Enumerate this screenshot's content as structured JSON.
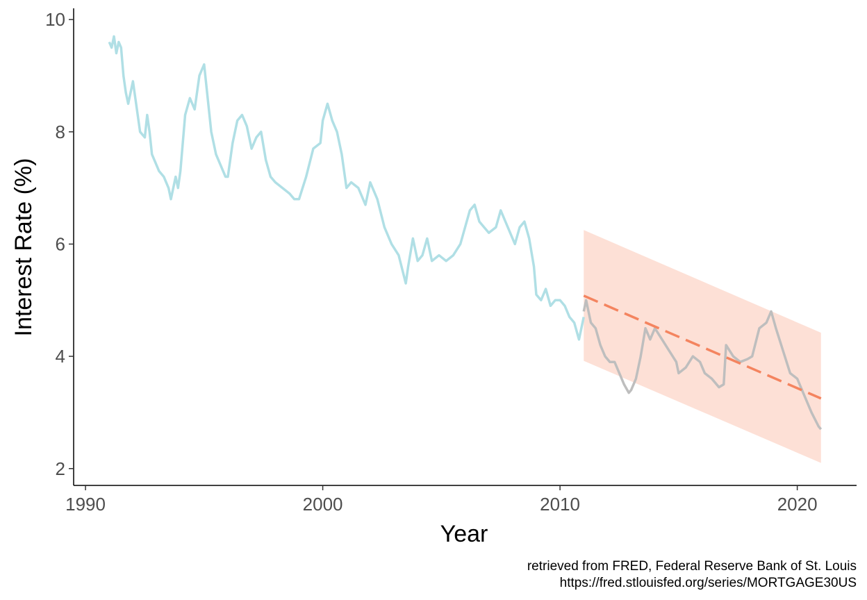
{
  "chart_data": {
    "type": "line",
    "title": "",
    "xlabel": "Year",
    "ylabel": "Interest Rate (%)",
    "xlim": [
      1989.5,
      2022.5
    ],
    "ylim": [
      1.7,
      10.2
    ],
    "x_ticks": [
      1990,
      2000,
      2010,
      2020
    ],
    "y_ticks": [
      2,
      4,
      6,
      8,
      10
    ],
    "grid": false,
    "legend": "none",
    "caption_lines": [
      "retrieved from FRED, Federal Reserve Bank of St. Louis",
      "https://fred.stlouisfed.org/series/MORTGAGE30US"
    ],
    "colors": {
      "training": "#b0dfe5",
      "observed": "#bebebe",
      "trend": "#f4845f",
      "band": "#fde0d6",
      "axis": "#000000"
    },
    "series": [
      {
        "role": "training",
        "x": [
          1991.0,
          1991.1,
          1991.2,
          1991.3,
          1991.4,
          1991.5,
          1991.6,
          1991.7,
          1991.8,
          1992.0,
          1992.1,
          1992.2,
          1992.3,
          1992.5,
          1992.6,
          1992.7,
          1992.8,
          1993.0,
          1993.1,
          1993.3,
          1993.5,
          1993.6,
          1993.8,
          1993.9,
          1994.0,
          1994.2,
          1994.4,
          1994.6,
          1994.8,
          1995.0,
          1995.1,
          1995.3,
          1995.5,
          1995.7,
          1995.9,
          1996.0,
          1996.2,
          1996.4,
          1996.6,
          1996.8,
          1997.0,
          1997.2,
          1997.4,
          1997.6,
          1997.8,
          1998.0,
          1998.3,
          1998.6,
          1998.8,
          1999.0,
          1999.3,
          1999.6,
          1999.9,
          2000.0,
          2000.2,
          2000.4,
          2000.6,
          2000.8,
          2001.0,
          2001.2,
          2001.5,
          2001.8,
          2002.0,
          2002.3,
          2002.6,
          2002.9,
          2003.2,
          2003.5,
          2003.6,
          2003.8,
          2004.0,
          2004.2,
          2004.4,
          2004.6,
          2004.9,
          2005.2,
          2005.5,
          2005.8,
          2006.0,
          2006.2,
          2006.4,
          2006.6,
          2006.8,
          2007.0,
          2007.3,
          2007.5,
          2007.7,
          2007.9,
          2008.1,
          2008.3,
          2008.5,
          2008.7,
          2008.9,
          2009.0,
          2009.2,
          2009.4,
          2009.6,
          2009.8,
          2010.0,
          2010.2,
          2010.4,
          2010.6,
          2010.8,
          2011.0
        ],
        "y": [
          9.6,
          9.5,
          9.7,
          9.4,
          9.6,
          9.5,
          9.0,
          8.7,
          8.5,
          8.9,
          8.6,
          8.3,
          8.0,
          7.9,
          8.3,
          8.0,
          7.6,
          7.4,
          7.3,
          7.2,
          7.0,
          6.8,
          7.2,
          7.0,
          7.3,
          8.3,
          8.6,
          8.4,
          9.0,
          9.2,
          8.8,
          8.0,
          7.6,
          7.4,
          7.2,
          7.2,
          7.8,
          8.2,
          8.3,
          8.1,
          7.7,
          7.9,
          8.0,
          7.5,
          7.2,
          7.1,
          7.0,
          6.9,
          6.8,
          6.8,
          7.2,
          7.7,
          7.8,
          8.2,
          8.5,
          8.2,
          8.0,
          7.6,
          7.0,
          7.1,
          7.0,
          6.7,
          7.1,
          6.8,
          6.3,
          6.0,
          5.8,
          5.3,
          5.6,
          6.1,
          5.7,
          5.8,
          6.1,
          5.7,
          5.8,
          5.7,
          5.8,
          6.0,
          6.3,
          6.6,
          6.7,
          6.4,
          6.3,
          6.2,
          6.3,
          6.6,
          6.4,
          6.2,
          6.0,
          6.3,
          6.4,
          6.1,
          5.6,
          5.1,
          5.0,
          5.2,
          4.9,
          5.0,
          5.0,
          4.9,
          4.7,
          4.6,
          4.3,
          4.7
        ]
      },
      {
        "role": "observed",
        "x": [
          2011.0,
          2011.1,
          2011.3,
          2011.5,
          2011.7,
          2011.9,
          2012.1,
          2012.3,
          2012.5,
          2012.7,
          2012.9,
          2013.0,
          2013.2,
          2013.4,
          2013.6,
          2013.8,
          2014.0,
          2014.3,
          2014.6,
          2014.9,
          2015.0,
          2015.3,
          2015.6,
          2015.9,
          2016.1,
          2016.4,
          2016.7,
          2016.9,
          2017.0,
          2017.3,
          2017.6,
          2017.9,
          2018.1,
          2018.4,
          2018.7,
          2018.9,
          2019.1,
          2019.4,
          2019.7,
          2020.0,
          2020.3,
          2020.6,
          2020.9,
          2021.0
        ],
        "y": [
          4.8,
          5.0,
          4.6,
          4.5,
          4.2,
          4.0,
          3.9,
          3.9,
          3.7,
          3.5,
          3.35,
          3.4,
          3.6,
          4.0,
          4.5,
          4.3,
          4.5,
          4.3,
          4.1,
          3.9,
          3.7,
          3.8,
          4.0,
          3.9,
          3.7,
          3.6,
          3.45,
          3.5,
          4.2,
          4.0,
          3.9,
          3.95,
          4.0,
          4.5,
          4.6,
          4.8,
          4.5,
          4.1,
          3.7,
          3.6,
          3.3,
          3.0,
          2.75,
          2.7
        ]
      },
      {
        "role": "trend",
        "x": [
          2011.0,
          2021.0
        ],
        "y": [
          5.08,
          3.25
        ]
      },
      {
        "role": "band",
        "x": [
          2011.0,
          2021.0
        ],
        "upper": [
          6.25,
          4.42
        ],
        "lower": [
          3.92,
          2.1
        ]
      }
    ]
  }
}
